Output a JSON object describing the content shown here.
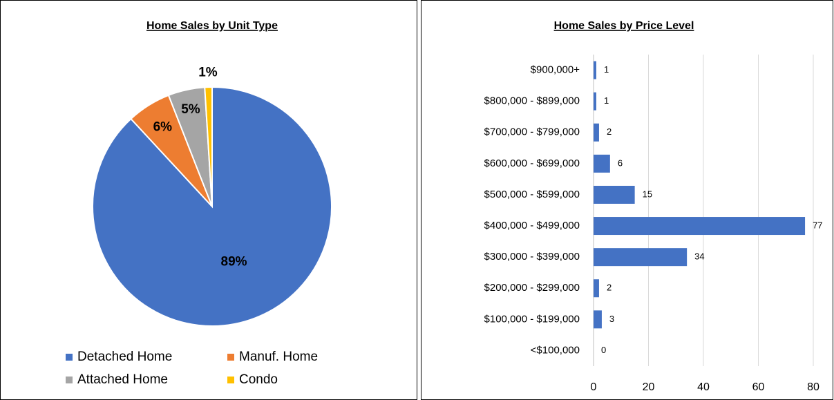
{
  "chart_data": [
    {
      "type": "pie",
      "title": "Home Sales by Unit Type",
      "categories": [
        "Detached Home",
        "Manuf. Home",
        "Attached Home",
        "Condo"
      ],
      "values": [
        89,
        6,
        5,
        1
      ],
      "value_labels": [
        "89%",
        "6%",
        "5%",
        "1%"
      ],
      "colors": [
        "#4472c4",
        "#ed7d31",
        "#a5a5a5",
        "#ffc000"
      ],
      "legend": "bottom"
    },
    {
      "type": "barh",
      "title": "Home Sales by Price Level",
      "categories": [
        "$900,000+",
        "$800,000 - $899,000",
        "$700,000 - $799,000",
        "$600,000 - $699,000",
        "$500,000 - $599,000",
        "$400,000 - $499,000",
        "$300,000 - $399,000",
        "$200,000 - $299,000",
        "$100,000 - $199,000",
        "<$100,000"
      ],
      "values": [
        1,
        1,
        2,
        6,
        15,
        77,
        34,
        2,
        3,
        0
      ],
      "color": "#4472c4",
      "xlim": [
        0,
        80
      ],
      "xticks": [
        0,
        20,
        40,
        60,
        80
      ],
      "grid": true
    }
  ]
}
